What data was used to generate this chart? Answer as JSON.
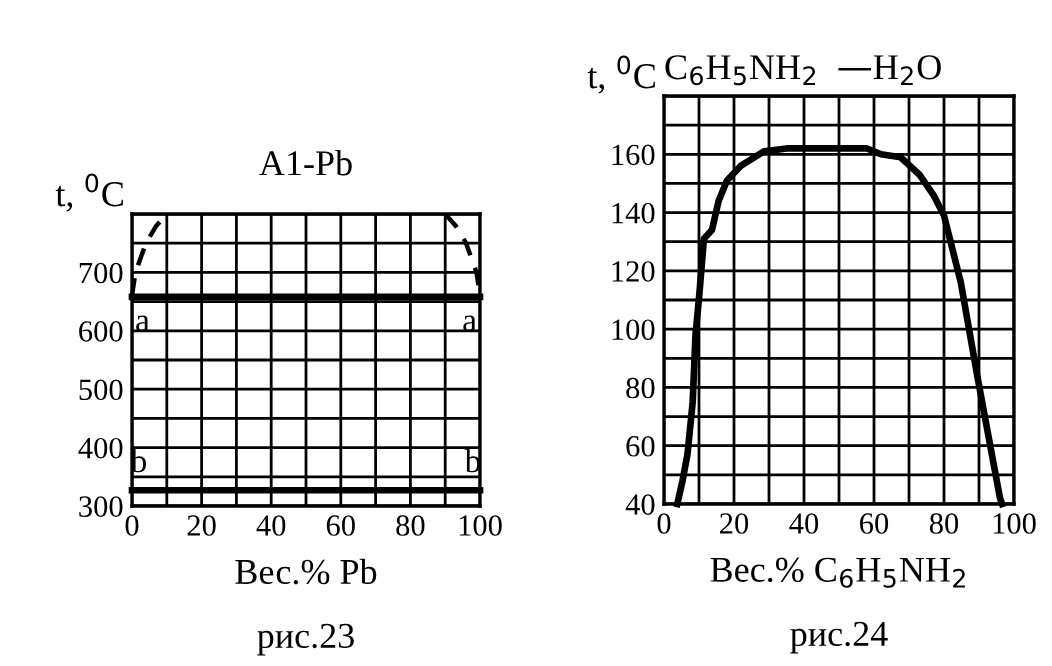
{
  "chart_data": [
    {
      "type": "line",
      "title": "A1-Pb",
      "xlabel": "Вес.% Pb",
      "ylabel": "t, $^{0}$C",
      "xlim": [
        0,
        100
      ],
      "ylim": [
        300,
        800
      ],
      "xticks": [
        0,
        {
          "value": 10,
          "label": null
        },
        20,
        {
          "value": 30,
          "label": null
        },
        40,
        {
          "value": 50,
          "label": null
        },
        60,
        {
          "value": 70,
          "label": null
        },
        80,
        {
          "value": 90,
          "label": null
        },
        100
      ],
      "yticks": [
        300,
        {
          "value": 350,
          "label": null
        },
        400,
        {
          "value": 450,
          "label": null
        },
        500,
        {
          "value": 550,
          "label": null
        },
        600,
        {
          "value": 650,
          "label": null
        },
        700,
        {
          "value": 750,
          "label": null
        },
        {
          "value": 800,
          "label": null
        }
      ],
      "grid": true,
      "series": [
        {
          "color": "#000000",
          "line_style": "solid",
          "x": [
            0,
            100
          ],
          "values": [
            658,
            658
          ]
        },
        {
          "color": "#000000",
          "line_style": "solid",
          "x": [
            0,
            100
          ],
          "values": [
            327,
            327
          ]
        },
        {
          "color": "#000000",
          "line_style": "dashed",
          "x": [
            0,
            1,
            4,
            7,
            10
          ],
          "values": [
            660,
            700,
            750,
            780,
            800
          ]
        },
        {
          "color": "#000000",
          "line_style": "dashed",
          "x": [
            90,
            93,
            96,
            99,
            100
          ],
          "values": [
            800,
            780,
            750,
            700,
            660
          ]
        }
      ],
      "annotations": [
        {
          "text": "a",
          "x": 3,
          "y": 658
        },
        {
          "text": "a",
          "x": 97,
          "y": 658
        },
        {
          "text": "b",
          "x": 2,
          "y": 327
        },
        {
          "text": "b",
          "x": 98,
          "y": 327
        },
        "рис.23"
      ]
    },
    {
      "type": "line",
      "title": "C$_{6}$H$_{5}$NH$_{2}$  —H$_{2}$O",
      "xlabel": "Вес.% C$_{6}$H$_{5}$NH$_{2}$",
      "ylabel": "t, $^{0}$C",
      "xlim": [
        0,
        100
      ],
      "ylim": [
        40,
        180
      ],
      "xticks": [
        0,
        {
          "value": 10,
          "label": null
        },
        20,
        {
          "value": 30,
          "label": null
        },
        40,
        {
          "value": 50,
          "label": null
        },
        60,
        {
          "value": 70,
          "label": null
        },
        80,
        {
          "value": 90,
          "label": null
        },
        100
      ],
      "yticks": [
        40,
        {
          "value": 50,
          "label": null
        },
        60,
        {
          "value": 70,
          "label": null
        },
        80,
        {
          "value": 90,
          "label": null
        },
        100,
        {
          "value": 110,
          "label": null
        },
        120,
        {
          "value": 130,
          "label": null
        },
        140,
        {
          "value": 150,
          "label": null
        },
        160,
        {
          "value": 170,
          "label": null
        },
        {
          "value": 180,
          "label": null
        }
      ],
      "grid": true,
      "series": [
        {
          "color": "#000000",
          "line_style": "solid",
          "x": [
            3.8,
            5.3,
            6.7,
            8.2,
            9,
            10.1,
            11.4,
            13.7,
            15.6,
            18,
            21.9,
            28.6,
            35,
            45,
            58,
            62,
            67.6,
            73,
            77,
            80,
            84.8,
            89.5,
            96,
            96.6
          ],
          "values": [
            40,
            48,
            57,
            75,
            98,
            112,
            131,
            134,
            144,
            151,
            156,
            161,
            162,
            162,
            162,
            160,
            159,
            153,
            146,
            139,
            116,
            84,
            42,
            40
          ]
        }
      ],
      "annotations": [
        "рис.24"
      ]
    }
  ]
}
